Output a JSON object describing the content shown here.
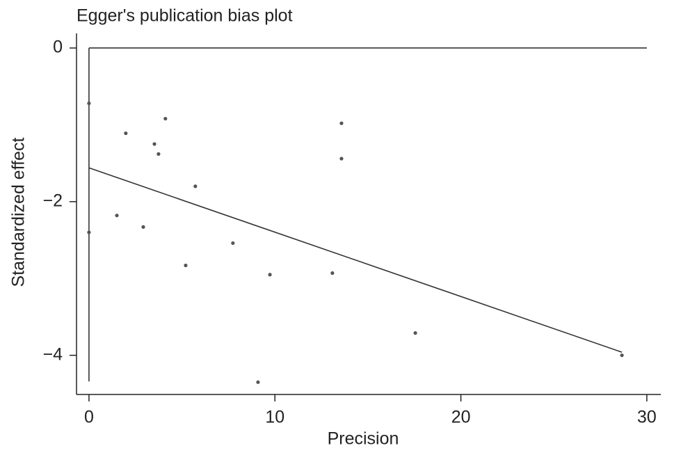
{
  "chart_data": {
    "type": "scatter",
    "title": "Egger's publication bias plot",
    "x_label": "Precision",
    "y_label": "Standardized effect",
    "xlim": [
      -0.67,
      30.75
    ],
    "ylim": [
      -4.51,
      0.19
    ],
    "xticks": [
      0,
      10,
      20,
      30
    ],
    "yticks": [
      {
        "value": -4,
        "label": "−4"
      },
      {
        "value": -2,
        "label": "−2"
      },
      0
    ],
    "color": "#555555",
    "line_color": "#333333",
    "x": [
      0,
      0,
      1.98,
      1.5,
      3.52,
      3.74,
      4.11,
      2.92,
      5.72,
      5.2,
      7.74,
      9.73,
      9.09,
      13.58,
      13.58,
      13.09,
      17.55,
      28.66
    ],
    "values": [
      -0.72,
      -2.4,
      -1.11,
      -2.18,
      -1.25,
      -1.38,
      -0.92,
      -2.33,
      -1.8,
      -2.83,
      -2.54,
      -2.95,
      -4.35,
      -0.98,
      -1.44,
      -2.93,
      -3.71,
      -4.0
    ],
    "lines": [
      {
        "x": [
          0,
          28.66
        ],
        "values": [
          -1.56,
          -3.96
        ]
      },
      {
        "x": [
          0,
          30
        ],
        "values": [
          0,
          0
        ]
      },
      {
        "x": [
          0,
          0
        ],
        "values": [
          0,
          -4.34
        ]
      }
    ]
  }
}
